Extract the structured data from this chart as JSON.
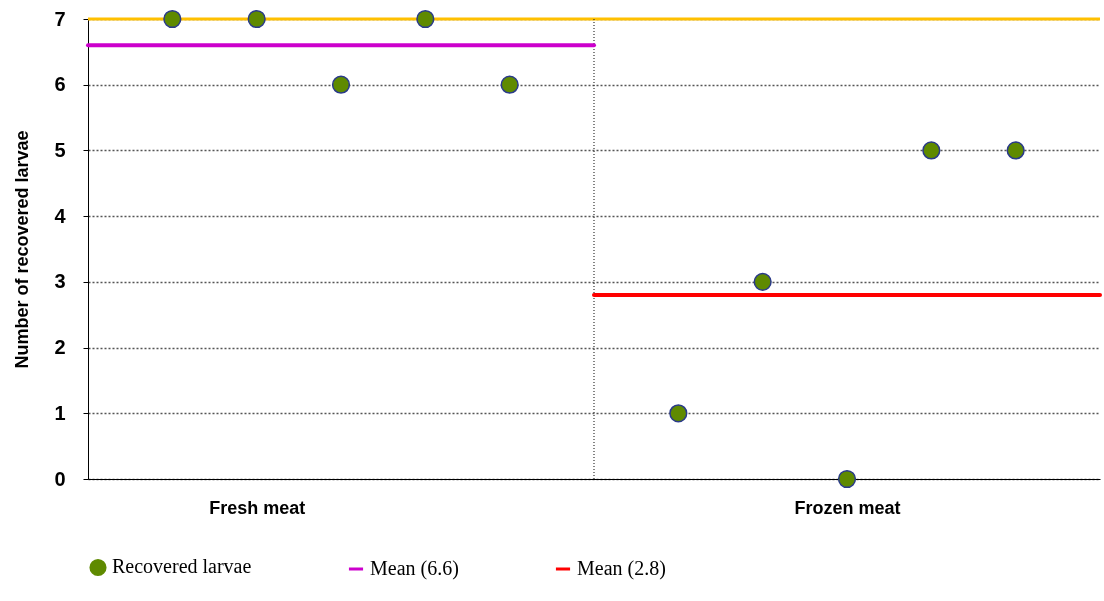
{
  "chart_data": {
    "type": "scatter",
    "ylabel": "Number of recovered larvae",
    "categories": [
      null,
      null,
      "Fresh meat",
      null,
      null,
      null,
      null,
      null,
      null,
      "Frozen meat",
      null,
      null,
      null
    ],
    "ylim": [
      0,
      7
    ],
    "yticks": [
      0,
      1,
      2,
      3,
      4,
      5,
      6,
      7
    ],
    "grid": "y",
    "legend": "bottom",
    "series": [
      {
        "name": "Recovered larvae",
        "color": "#5f8a00",
        "marker": "circle",
        "values": [
          null,
          7,
          7,
          6,
          7,
          6,
          null,
          1,
          3,
          0,
          5,
          5,
          null
        ]
      },
      {
        "name": "Mean (6.6)",
        "type": "line",
        "marker": "none",
        "color": "#cc00cc",
        "values": [
          6.6,
          6.6,
          6.6,
          6.6,
          6.6,
          6.6,
          6.6,
          null,
          null,
          null,
          null,
          null,
          null
        ]
      },
      {
        "name": "Mean (2.8)",
        "type": "line",
        "marker": "none",
        "color": "#ff0000",
        "values": [
          null,
          null,
          null,
          null,
          null,
          null,
          2.8,
          2.8,
          2.8,
          2.8,
          2.8,
          2.8,
          2.8
        ]
      }
    ],
    "ref_lines": [
      {
        "axis": "y",
        "value": 7,
        "color": "#ffc000"
      }
    ]
  }
}
